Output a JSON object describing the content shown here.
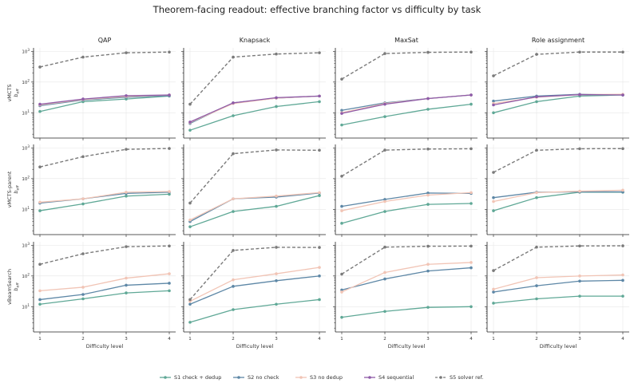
{
  "title": "Theorem-facing readout: effective branching factor vs difficulty by task",
  "colors": {
    "S1 check + dedup": "#5fa896",
    "S2 no check": "#5d87a6",
    "S3 no dedup": "#f1c4b5",
    "S4 sequential": "#8e5ba8",
    "S5 solver ref.": "#7a7a7a"
  },
  "chart_data": {
    "type": "line",
    "x": [
      1,
      2,
      3,
      4
    ],
    "xlabel": "Difficulty level",
    "yscale": "log",
    "ylim": [
      1.5,
      1300
    ],
    "y_ticks": [
      10,
      100,
      1000
    ],
    "y_tick_labels": [
      "10^1",
      "10^2",
      "10^3"
    ],
    "grid": true,
    "legend_location": "bottom-center",
    "tasks": [
      "QAP",
      "Knapsack",
      "MaxSat",
      "Role assignment"
    ],
    "rows": [
      {
        "ylabel": "vMCTS",
        "ylabel_sub": "b_eff",
        "panels": [
          {
            "task": "QAP",
            "series": [
              {
                "name": "S1 check + dedup",
                "values": [
                  11,
                  23,
                  28,
                  35
                ]
              },
              {
                "name": "S2 no check",
                "values": [
                  17,
                  26,
                  32,
                  36
                ]
              },
              {
                "name": "S3 no dedup",
                "values": [
                  18,
                  27,
                  34,
                  38
                ]
              },
              {
                "name": "S4 sequential",
                "values": [
                  19,
                  28,
                  36,
                  38
                ]
              },
              {
                "name": "S5 solver ref.",
                "values": [
                  310,
                  650,
                  900,
                  950
                ]
              }
            ]
          },
          {
            "task": "Knapsack",
            "series": [
              {
                "name": "S1 check + dedup",
                "values": [
                  2.7,
                  8,
                  16,
                  23
                ]
              },
              {
                "name": "S2 no check",
                "values": [
                  4.5,
                  21,
                  30,
                  35
                ]
              },
              {
                "name": "S3 no dedup",
                "values": [
                  4.8,
                  20,
                  30,
                  35
                ]
              },
              {
                "name": "S4 sequential",
                "values": [
                  5,
                  21,
                  31,
                  35
                ]
              },
              {
                "name": "S5 solver ref.",
                "values": [
                  19,
                  650,
                  820,
                  900
                ]
              }
            ]
          },
          {
            "task": "MaxSat",
            "series": [
              {
                "name": "S1 check + dedup",
                "values": [
                  4,
                  7.5,
                  13,
                  19
                ]
              },
              {
                "name": "S2 no check",
                "values": [
                  12,
                  21,
                  29,
                  38
                ]
              },
              {
                "name": "S3 no dedup",
                "values": [
                  10,
                  20,
                  29,
                  38
                ]
              },
              {
                "name": "S4 sequential",
                "values": [
                  9.5,
                  19,
                  29,
                  38
                ]
              },
              {
                "name": "S5 solver ref.",
                "values": [
                  125,
                  850,
                  930,
                  950
                ]
              }
            ]
          },
          {
            "task": "Role assignment",
            "series": [
              {
                "name": "S1 check + dedup",
                "values": [
                  10,
                  23,
                  35,
                  38
                ]
              },
              {
                "name": "S2 no check",
                "values": [
                  24,
                  35,
                  40,
                  38
                ]
              },
              {
                "name": "S3 no dedup",
                "values": [
                  20,
                  32,
                  39,
                  40
                ]
              },
              {
                "name": "S4 sequential",
                "values": [
                  18,
                  33,
                  39,
                  38
                ]
              },
              {
                "name": "S5 solver ref.",
                "values": [
                  160,
                  800,
                  950,
                  950
                ]
              }
            ]
          }
        ]
      },
      {
        "ylabel": "vMCTS-parent",
        "ylabel_sub": "b_eff",
        "panels": [
          {
            "task": "QAP",
            "series": [
              {
                "name": "S1 check + dedup",
                "values": [
                  9,
                  15,
                  27,
                  31
                ]
              },
              {
                "name": "S2 no check",
                "values": [
                  16,
                  22,
                  33,
                  36
                ]
              },
              {
                "name": "S3 no dedup",
                "values": [
                  17,
                  22,
                  36,
                  38
                ]
              },
              {
                "name": "S5 solver ref.",
                "values": [
                  240,
                  520,
                  900,
                  960
                ]
              }
            ]
          },
          {
            "task": "Knapsack",
            "series": [
              {
                "name": "S1 check + dedup",
                "values": [
                  2.7,
                  8.5,
                  12.5,
                  28
                ]
              },
              {
                "name": "S2 no check",
                "values": [
                  4,
                  22,
                  25,
                  34
                ]
              },
              {
                "name": "S3 no dedup",
                "values": [
                  4.5,
                  22,
                  27,
                  35
                ]
              },
              {
                "name": "S5 solver ref.",
                "values": [
                  16,
                  650,
                  860,
                  840
                ]
              }
            ]
          },
          {
            "task": "MaxSat",
            "series": [
              {
                "name": "S1 check + dedup",
                "values": [
                  3.5,
                  8.5,
                  14.5,
                  15.5
                ]
              },
              {
                "name": "S2 no check",
                "values": [
                  12.5,
                  21,
                  34,
                  33
                ]
              },
              {
                "name": "S3 no dedup",
                "values": [
                  9,
                  18,
                  29,
                  35
                ]
              },
              {
                "name": "S5 solver ref.",
                "values": [
                  120,
                  850,
                  920,
                  940
                ]
              }
            ]
          },
          {
            "task": "Role assignment",
            "series": [
              {
                "name": "S1 check + dedup",
                "values": [
                  9,
                  24,
                  36,
                  36
                ]
              },
              {
                "name": "S2 no check",
                "values": [
                  24,
                  36,
                  37,
                  37
                ]
              },
              {
                "name": "S3 no dedup",
                "values": [
                  18,
                  35,
                  39,
                  42
                ]
              },
              {
                "name": "S5 solver ref.",
                "values": [
                  160,
                  840,
                  940,
                  950
                ]
              }
            ]
          }
        ]
      },
      {
        "ylabel": "vBeamSearch",
        "ylabel_sub": "b_eff",
        "panels": [
          {
            "task": "QAP",
            "series": [
              {
                "name": "S1 check + dedup",
                "values": [
                  12,
                  18,
                  28,
                  33
                ]
              },
              {
                "name": "S2 no check",
                "values": [
                  17,
                  25,
                  50,
                  58
                ]
              },
              {
                "name": "S3 no dedup",
                "values": [
                  33,
                  43,
                  85,
                  118
                ]
              },
              {
                "name": "S5 solver ref.",
                "values": [
                  240,
                  530,
                  900,
                  950
                ]
              }
            ]
          },
          {
            "task": "Knapsack",
            "series": [
              {
                "name": "S1 check + dedup",
                "values": [
                  3.1,
                  8,
                  12,
                  17
                ]
              },
              {
                "name": "S2 no check",
                "values": [
                  12,
                  46,
                  70,
                  100
                ]
              },
              {
                "name": "S3 no dedup",
                "values": [
                  15,
                  75,
                  118,
                  190
                ]
              },
              {
                "name": "S5 solver ref.",
                "values": [
                  17,
                  680,
                  860,
                  850
                ]
              }
            ]
          },
          {
            "task": "MaxSat",
            "series": [
              {
                "name": "S1 check + dedup",
                "values": [
                  4.5,
                  7,
                  9.5,
                  10
                ]
              },
              {
                "name": "S2 no check",
                "values": [
                  35,
                  80,
                  145,
                  185
                ]
              },
              {
                "name": "S3 no dedup",
                "values": [
                  30,
                  130,
                  240,
                  275
                ]
              },
              {
                "name": "S5 solver ref.",
                "values": [
                  115,
                  870,
                  930,
                  940
                ]
              }
            ]
          },
          {
            "task": "Role assignment",
            "series": [
              {
                "name": "S1 check + dedup",
                "values": [
                  13,
                  18,
                  22,
                  22
                ]
              },
              {
                "name": "S2 no check",
                "values": [
                  30,
                  48,
                  68,
                  72
                ]
              },
              {
                "name": "S3 no dedup",
                "values": [
                  37,
                  88,
                  100,
                  108
                ]
              },
              {
                "name": "S5 solver ref.",
                "values": [
                  150,
                  870,
                  950,
                  960
                ]
              }
            ]
          }
        ]
      }
    ],
    "legend": [
      "S1 check + dedup",
      "S2 no check",
      "S3 no dedup",
      "S4 sequential",
      "S5 solver ref."
    ]
  }
}
